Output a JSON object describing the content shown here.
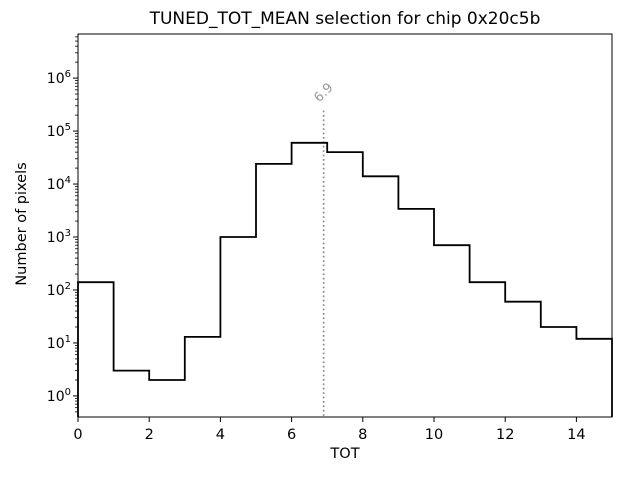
{
  "figure": {
    "background": "#ffffff"
  },
  "chart_data": {
    "type": "step-histogram",
    "title": "TUNED_TOT_MEAN selection for chip 0x20c5b",
    "xlabel": "TOT",
    "ylabel": "Number of pixels",
    "yscale": "log",
    "grid": false,
    "xlim": [
      0,
      15
    ],
    "ylim": [
      0.4,
      6800000
    ],
    "xticks": [
      0,
      2,
      4,
      6,
      8,
      10,
      12,
      14
    ],
    "ytick_exponents": [
      0,
      1,
      2,
      3,
      4,
      5,
      6
    ],
    "bin_edges": [
      0,
      1,
      2,
      3,
      4,
      5,
      6,
      7,
      8,
      9,
      10,
      11,
      12,
      13,
      14,
      15
    ],
    "counts": [
      140,
      3,
      2,
      13,
      1000,
      24000,
      60000,
      40000,
      14000,
      3400,
      700,
      140,
      60,
      20,
      12
    ],
    "line_color": "#000000",
    "axis_color": "#000000",
    "vline": {
      "x": 6.9,
      "label": "6.9",
      "style": "dotted",
      "color": "#8a8a8a",
      "label_color": "#9a9a9a",
      "ymax_fraction": 0.8
    }
  }
}
